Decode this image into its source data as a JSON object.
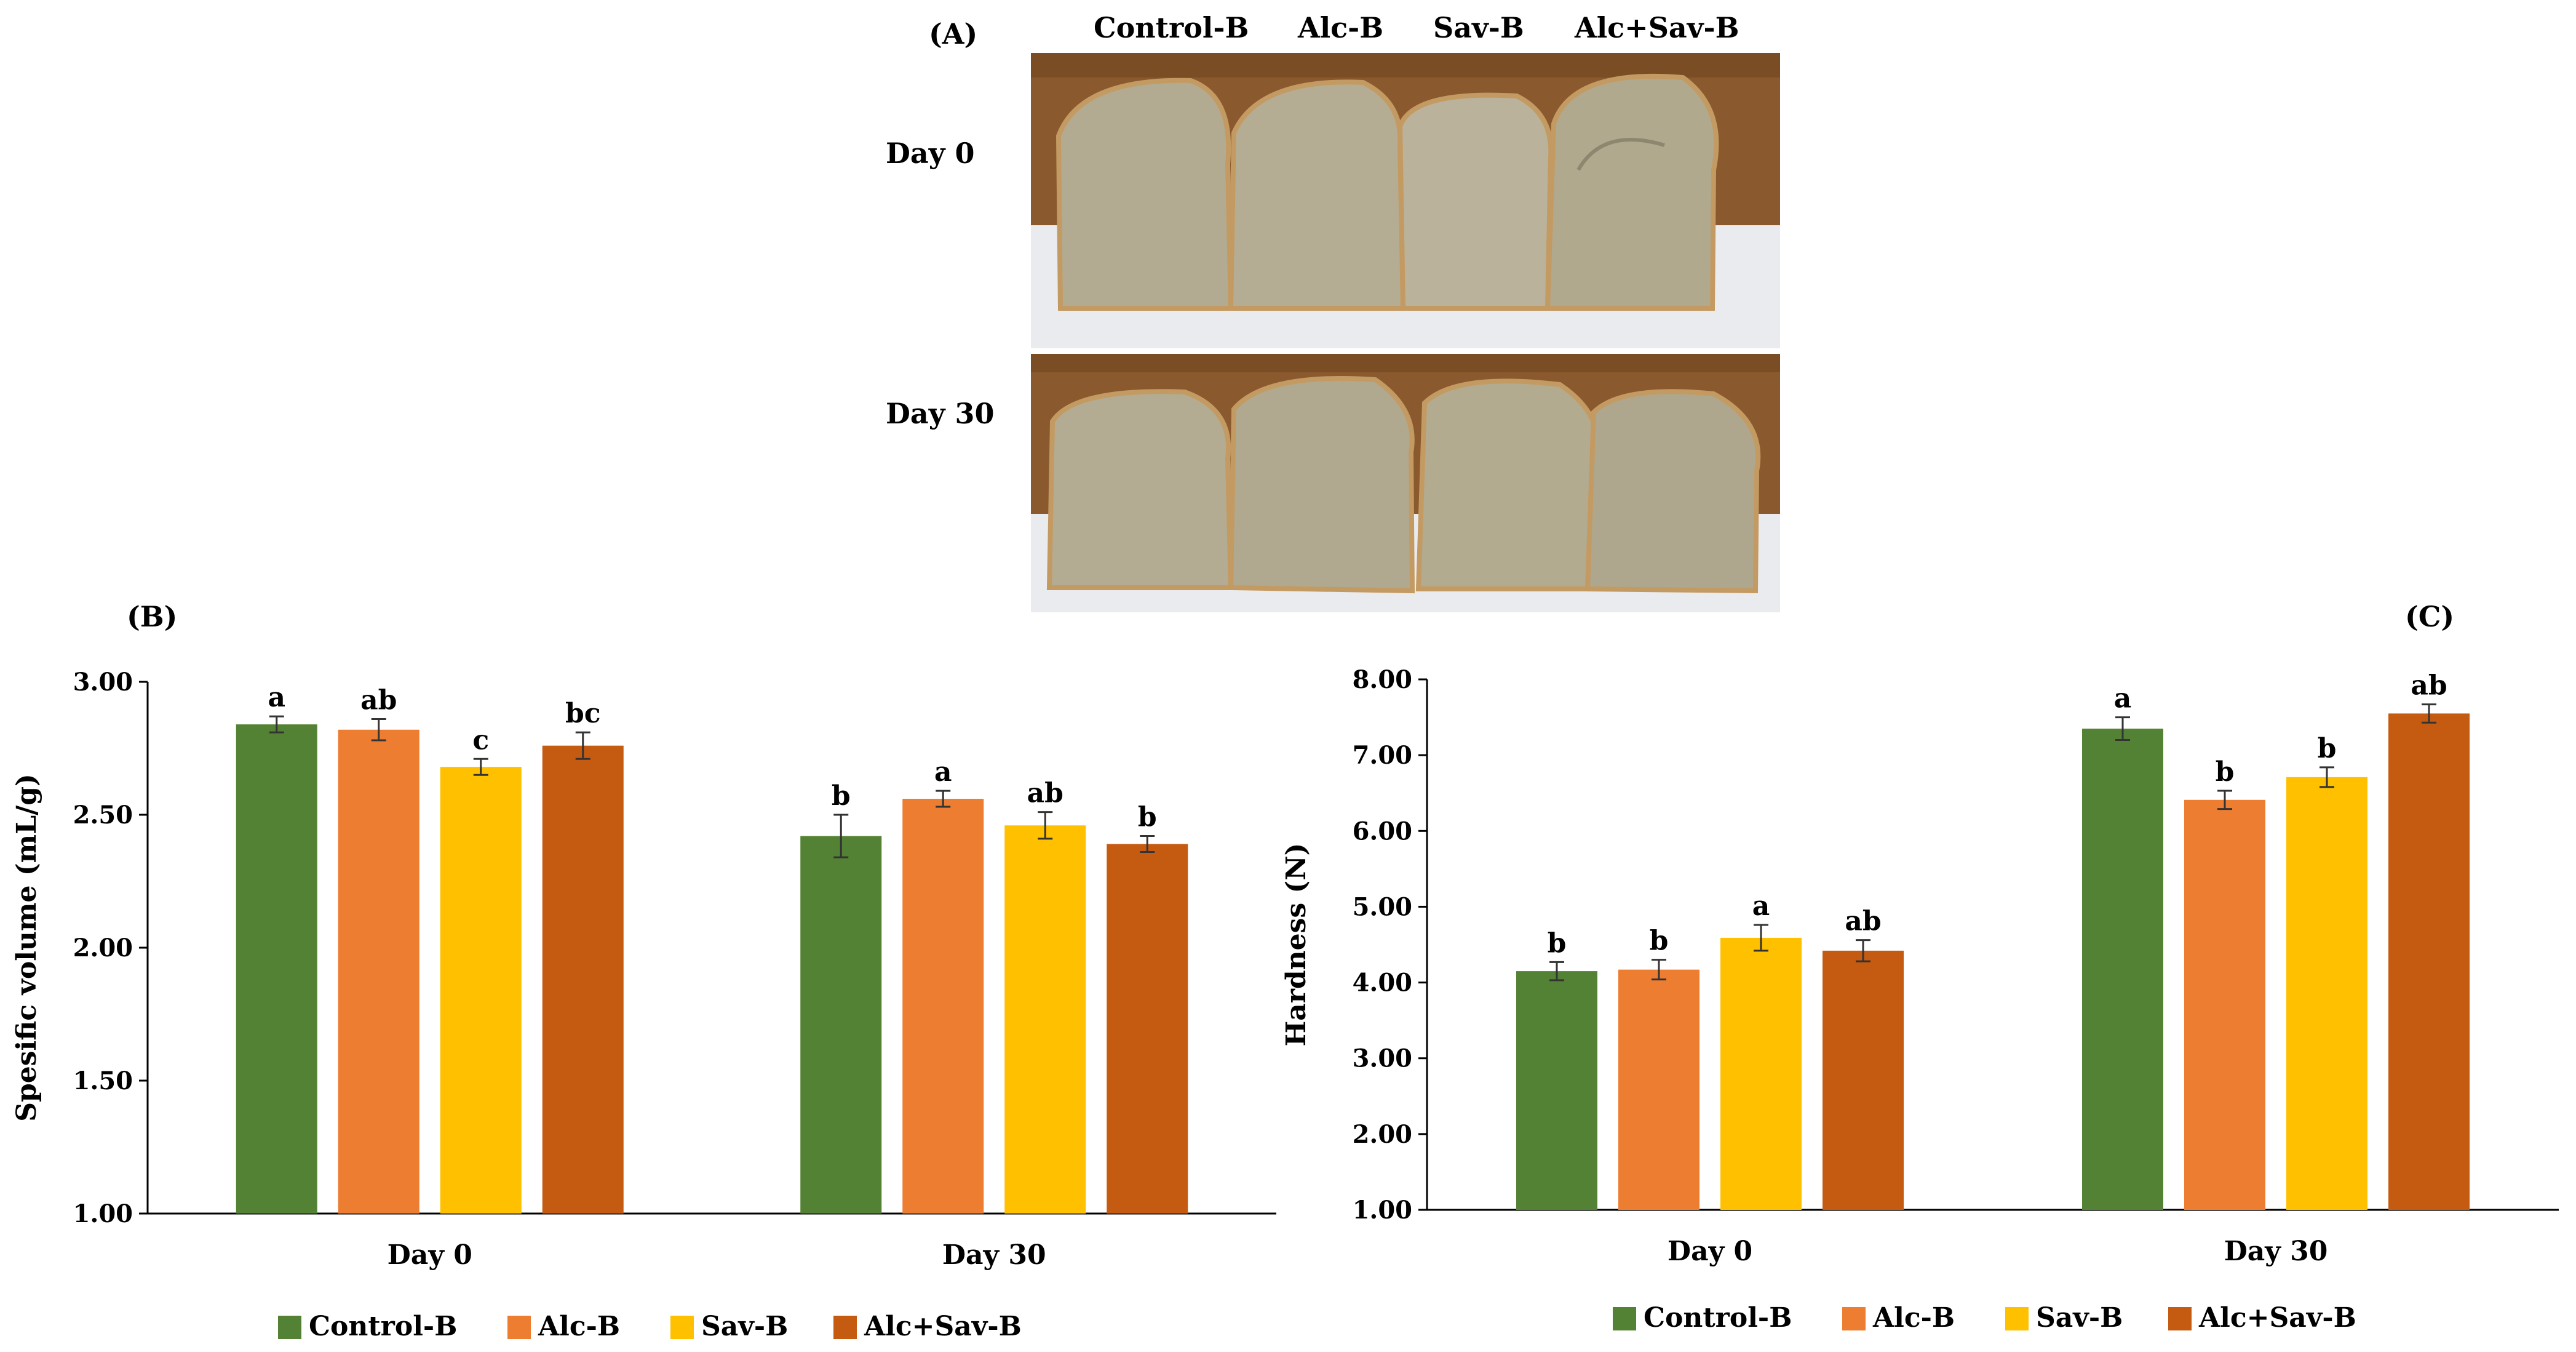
{
  "figure": {
    "panel_a_label": "(A)",
    "panel_b_label": "(B)",
    "panel_c_label": "(C)"
  },
  "photo_panel": {
    "column_labels": [
      "Control-B",
      "Alc-B",
      "Sav-B",
      "Alc+Sav-B"
    ],
    "row_labels": [
      "Day 0",
      "Day 30"
    ]
  },
  "colors": {
    "Control-B": "#548235",
    "Alc-B": "#ED7D31",
    "Sav-B": "#FFC000",
    "Alc+Sav-B": "#C55A11",
    "wood": "#8a5a2e",
    "bench": "#e9ebee",
    "crumb": "#b2ab91",
    "crust": "#c49a63"
  },
  "chart_data": [
    {
      "id": "B",
      "type": "bar",
      "title": "",
      "xlabel": "",
      "ylabel": "Spesific volume (mL/g)",
      "ylim": [
        1.0,
        3.0
      ],
      "yticks": [
        "1.00",
        "1.50",
        "2.00",
        "2.50",
        "3.00"
      ],
      "categories": [
        "Day 0",
        "Day 30"
      ],
      "series": [
        {
          "name": "Control-B",
          "values": [
            2.84,
            2.42
          ],
          "errors": [
            0.03,
            0.08
          ],
          "letters": [
            "a",
            "b"
          ]
        },
        {
          "name": "Alc-B",
          "values": [
            2.82,
            2.56
          ],
          "errors": [
            0.04,
            0.03
          ],
          "letters": [
            "ab",
            "a"
          ]
        },
        {
          "name": "Sav-B",
          "values": [
            2.68,
            2.46
          ],
          "errors": [
            0.03,
            0.05
          ],
          "letters": [
            "c",
            "ab"
          ]
        },
        {
          "name": "Alc+Sav-B",
          "values": [
            2.76,
            2.39
          ],
          "errors": [
            0.05,
            0.03
          ],
          "letters": [
            "bc",
            "b"
          ]
        }
      ],
      "legend": [
        "Control-B",
        "Alc-B",
        "Sav-B",
        "Alc+Sav-B"
      ],
      "legend_position": "bottom"
    },
    {
      "id": "C",
      "type": "bar",
      "title": "",
      "xlabel": "",
      "ylabel": "Hardness (N)",
      "ylim": [
        1.0,
        8.0
      ],
      "yticks": [
        "1.00",
        "2.00",
        "3.00",
        "4.00",
        "5.00",
        "6.00",
        "7.00",
        "8.00"
      ],
      "categories": [
        "Day 0",
        "Day 30"
      ],
      "series": [
        {
          "name": "Control-B",
          "values": [
            4.15,
            7.35
          ],
          "errors": [
            0.12,
            0.15
          ],
          "letters": [
            "b",
            "a"
          ]
        },
        {
          "name": "Alc-B",
          "values": [
            4.17,
            6.41
          ],
          "errors": [
            0.13,
            0.12
          ],
          "letters": [
            "b",
            "b"
          ]
        },
        {
          "name": "Sav-B",
          "values": [
            4.59,
            6.71
          ],
          "errors": [
            0.17,
            0.13
          ],
          "letters": [
            "a",
            "b"
          ]
        },
        {
          "name": "Alc+Sav-B",
          "values": [
            4.42,
            7.55
          ],
          "errors": [
            0.14,
            0.12
          ],
          "letters": [
            "ab",
            "ab"
          ]
        }
      ],
      "legend": [
        "Control-B",
        "Alc-B",
        "Sav-B",
        "Alc+Sav-B"
      ],
      "legend_position": "bottom"
    }
  ]
}
